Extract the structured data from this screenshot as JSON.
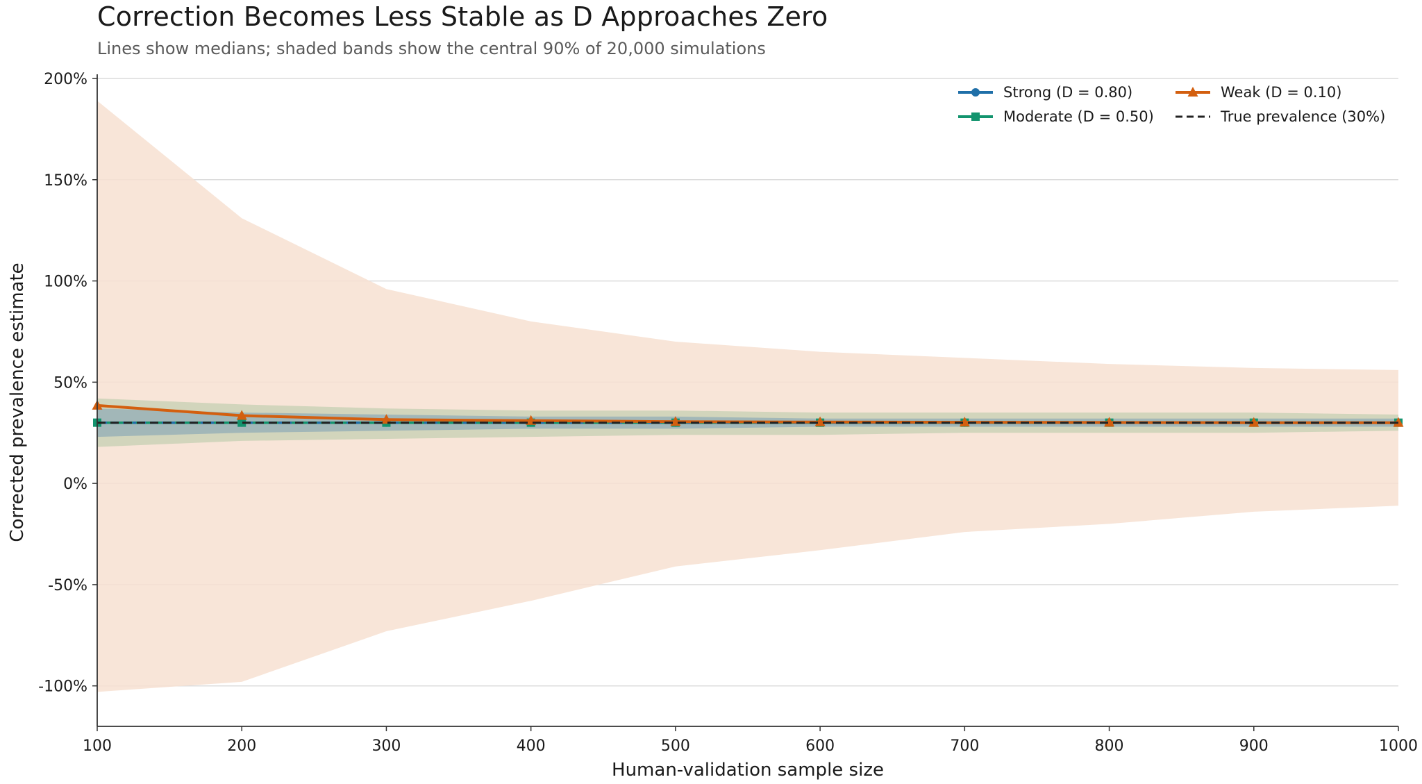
{
  "chart_data": {
    "type": "line",
    "title": "Correction Becomes Less Stable as D Approaches Zero",
    "subtitle": "Lines show medians; shaded bands show the central 90% of 20,000 simulations",
    "xlabel": "Human-validation sample size",
    "ylabel": "Corrected prevalence estimate",
    "x": [
      100,
      200,
      300,
      400,
      500,
      600,
      700,
      800,
      900,
      1000
    ],
    "xlim": [
      100,
      1000
    ],
    "ylim": [
      -120,
      200
    ],
    "xticks": [
      "100",
      "200",
      "300",
      "400",
      "500",
      "600",
      "700",
      "800",
      "900",
      "1000"
    ],
    "yticks": [
      {
        "value": 200,
        "label": "200%"
      },
      {
        "value": 150,
        "label": "150%"
      },
      {
        "value": 100,
        "label": "100%"
      },
      {
        "value": 50,
        "label": "50%"
      },
      {
        "value": 0,
        "label": "0%"
      },
      {
        "value": -50,
        "label": "-50%"
      },
      {
        "value": -100,
        "label": "-100%"
      }
    ],
    "grid": "horizontal",
    "legend_position": "top-right",
    "series": [
      {
        "name": "Strong (D = 0.80)",
        "color": "#1f6fa8",
        "marker": "circle",
        "median": [
          30,
          30,
          30,
          30,
          30,
          30,
          30,
          30,
          30,
          30
        ],
        "band_lower": [
          23,
          25,
          26,
          27,
          27,
          28,
          28,
          28,
          28,
          28
        ],
        "band_upper": [
          37,
          35,
          34,
          33,
          33,
          32,
          32,
          32,
          32,
          32
        ],
        "band_color": "#7a9fb5"
      },
      {
        "name": "Moderate (D = 0.50)",
        "color": "#13946e",
        "marker": "square",
        "median": [
          30,
          30,
          30,
          30,
          30,
          30,
          30,
          30,
          30,
          30
        ],
        "band_lower": [
          18,
          21,
          22,
          23,
          24,
          24,
          25,
          25,
          25,
          26
        ],
        "band_upper": [
          42,
          39,
          37,
          36,
          36,
          35,
          35,
          35,
          35,
          34
        ],
        "band_color": "#b3c8a6"
      },
      {
        "name": "Weak (D = 0.10)",
        "color": "#d35f0f",
        "marker": "triangle",
        "median": [
          38.5,
          33.5,
          31.5,
          31,
          30.5,
          30.3,
          30.2,
          30.1,
          30,
          30
        ],
        "band_lower": [
          -103,
          -98,
          -73,
          -58,
          -41,
          -33,
          -24,
          -20,
          -14,
          -11
        ],
        "band_upper": [
          189,
          131,
          96,
          80,
          70,
          65,
          62,
          59,
          57,
          56
        ],
        "band_color": "#f7e1d1"
      },
      {
        "name": "True prevalence (30%)",
        "color": "#222222",
        "marker": "none",
        "dashed": true,
        "values": [
          30,
          30,
          30,
          30,
          30,
          30,
          30,
          30,
          30,
          30
        ]
      }
    ]
  }
}
